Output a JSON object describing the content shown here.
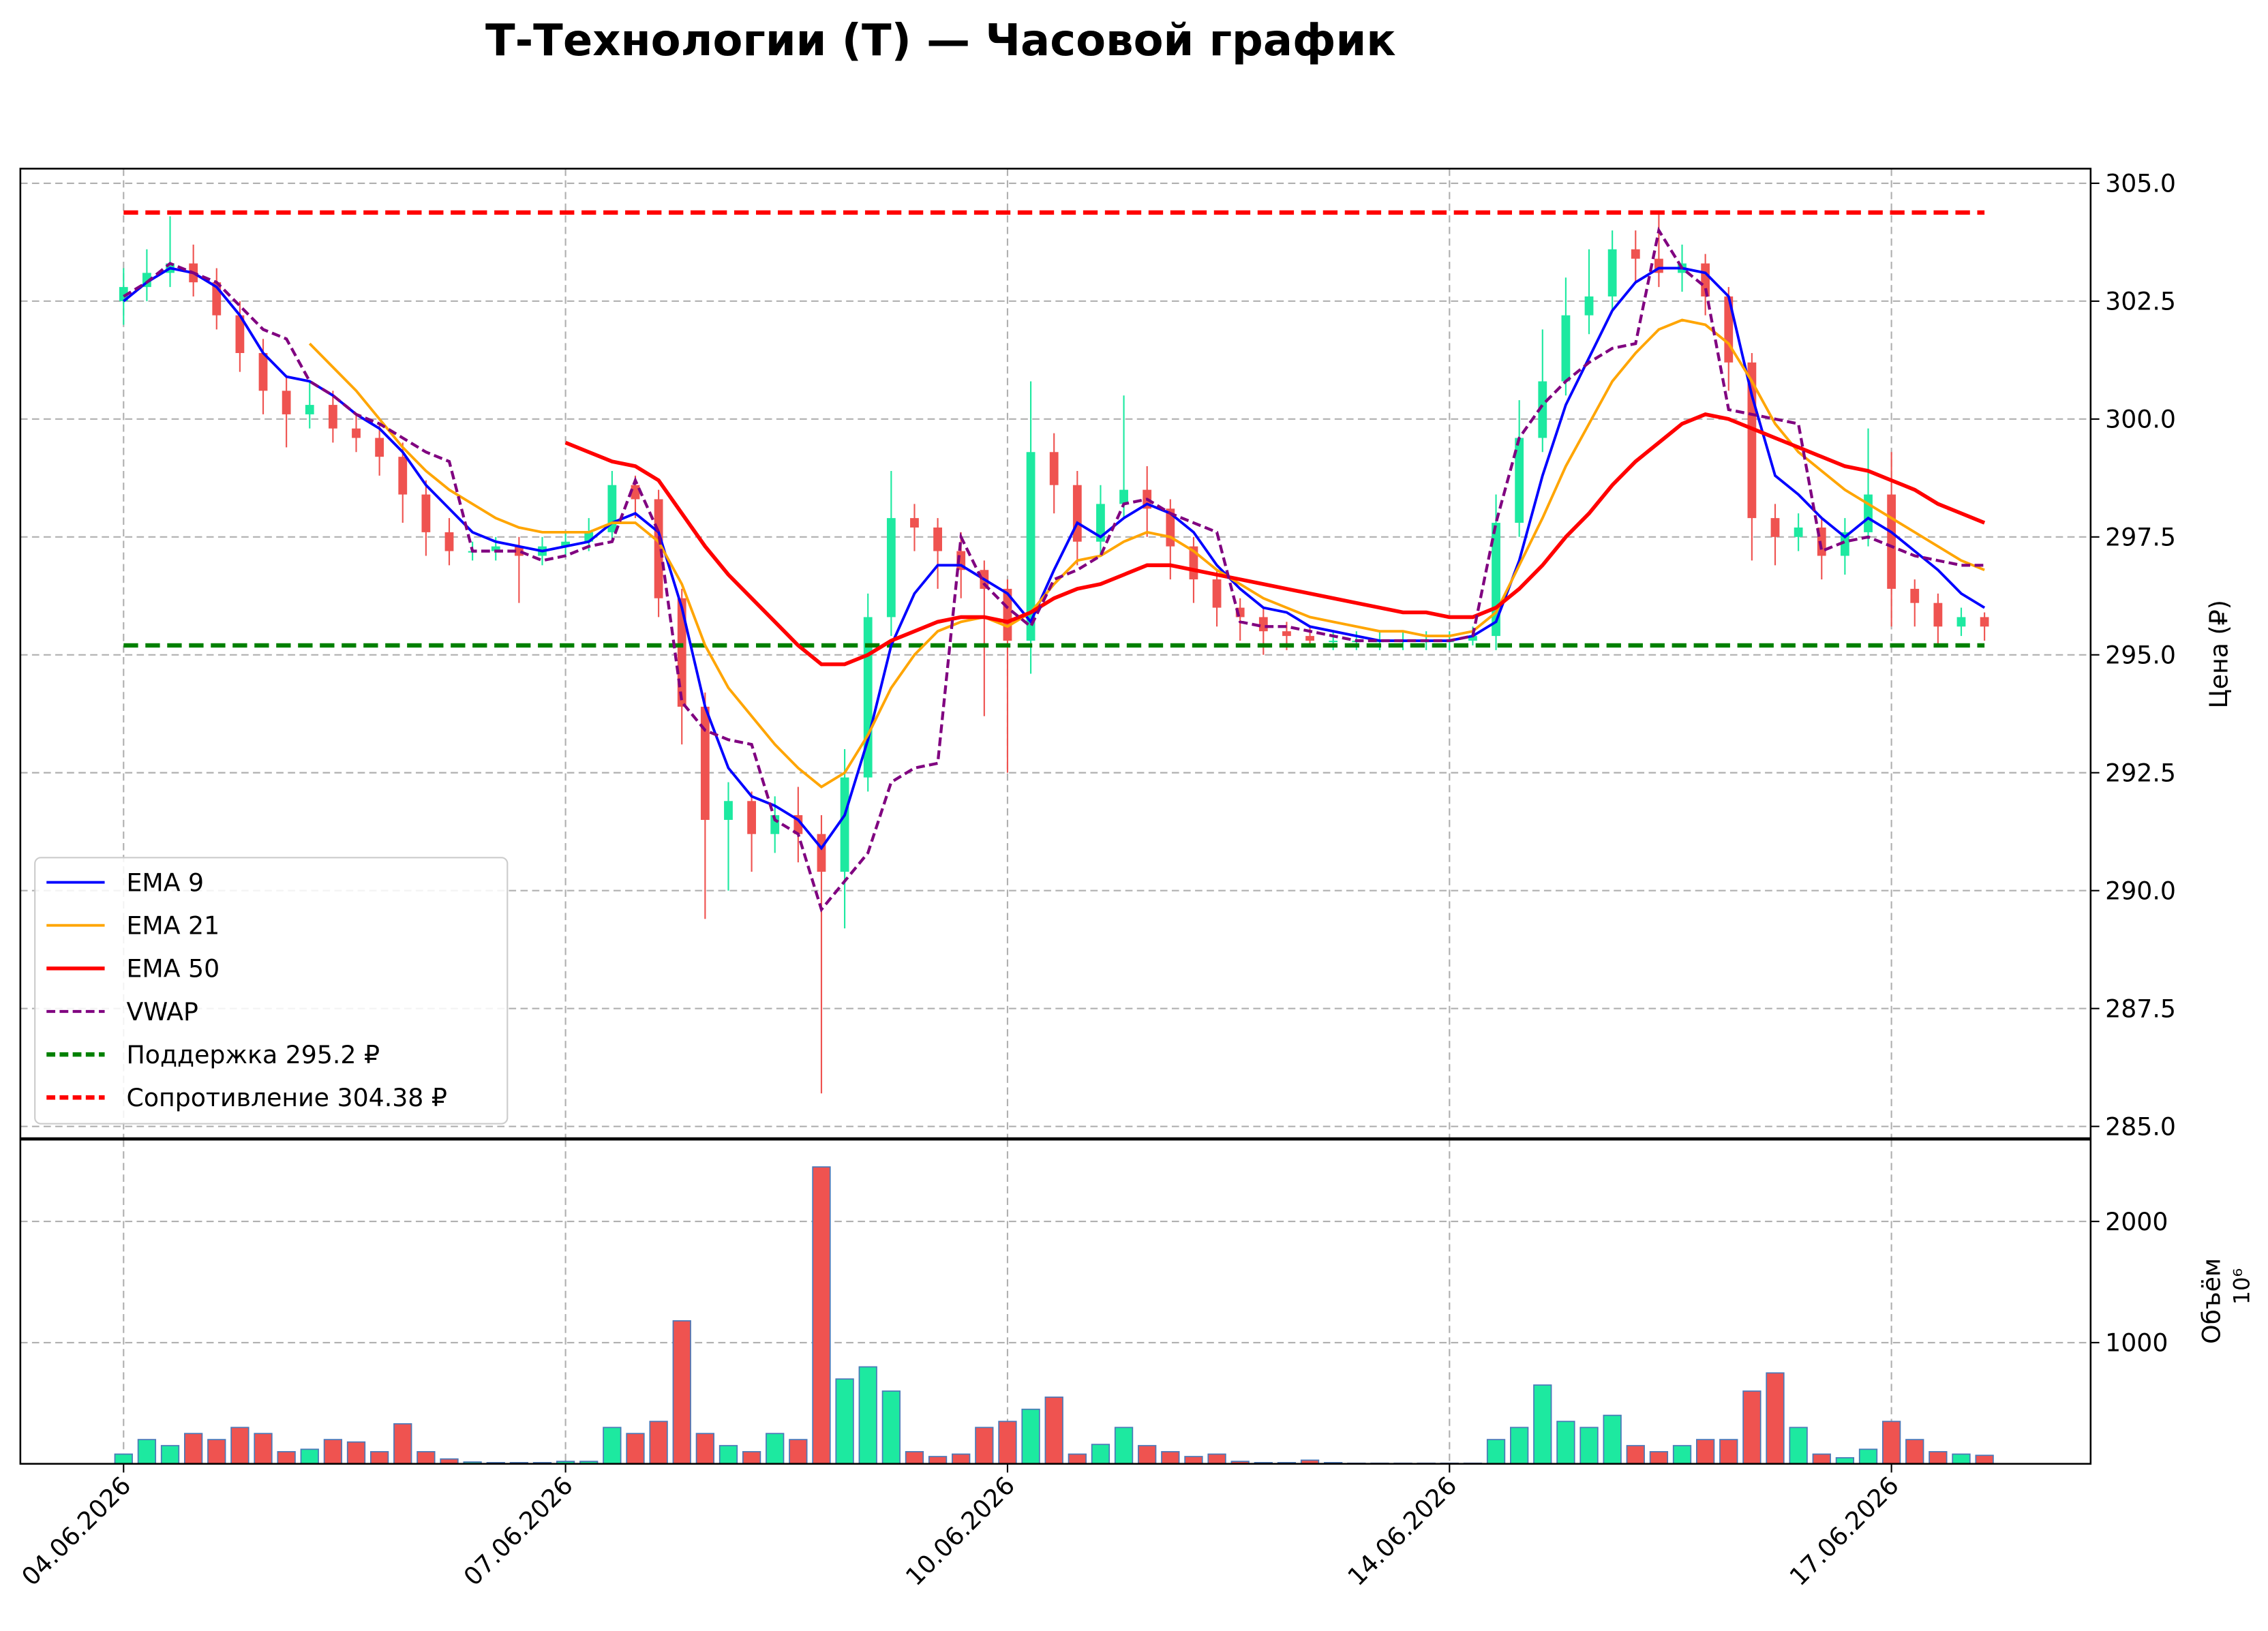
{
  "chart_data": {
    "type": "candlestick",
    "title": "Т-Технологии (T) — Часовой график",
    "y_label": "Цена (₽)",
    "volume_label": "Объём",
    "volume_multiplier": "10⁶",
    "categories": [
      "04.06.2026",
      null,
      null,
      null,
      null,
      null,
      null,
      null,
      null,
      null,
      null,
      null,
      null,
      null,
      null,
      null,
      null,
      null,
      null,
      "07.06.2026",
      null,
      null,
      null,
      null,
      null,
      null,
      null,
      null,
      null,
      null,
      null,
      null,
      null,
      null,
      null,
      null,
      null,
      null,
      "10.06.2026",
      null,
      null,
      null,
      null,
      null,
      null,
      null,
      null,
      null,
      null,
      null,
      null,
      null,
      null,
      null,
      null,
      null,
      null,
      "14.06.2026",
      null,
      null,
      null,
      null,
      null,
      null,
      null,
      null,
      null,
      null,
      null,
      null,
      null,
      null,
      null,
      null,
      null,
      null,
      "17.06.2026",
      null,
      null,
      null,
      null
    ],
    "open": [
      302.5,
      302.8,
      303.1,
      303.3,
      302.9,
      302.2,
      301.4,
      300.6,
      300.1,
      300.3,
      299.8,
      299.6,
      299.2,
      298.4,
      297.6,
      297.2,
      297.2,
      297.3,
      297.1,
      297.3,
      297.4,
      297.6,
      298.6,
      298.3,
      296.2,
      293.9,
      291.5,
      291.9,
      291.2,
      291.6,
      291.2,
      290.4,
      292.4,
      295.8,
      297.9,
      297.7,
      297.2,
      296.8,
      296.4,
      295.3,
      299.3,
      298.6,
      297.4,
      298.2,
      298.5,
      298.1,
      297.3,
      296.6,
      296.0,
      295.8,
      295.5,
      295.4,
      295.3,
      295.3,
      295.3,
      295.3,
      295.3,
      295.3,
      295.3,
      295.4,
      297.8,
      299.6,
      300.8,
      302.2,
      302.6,
      303.6,
      303.4,
      303.1,
      303.3,
      302.6,
      301.2,
      297.9,
      297.5,
      297.7,
      297.1,
      297.6,
      298.4,
      296.4,
      296.1,
      295.6,
      295.8
    ],
    "high": [
      303.2,
      303.6,
      304.3,
      303.7,
      303.2,
      302.5,
      301.7,
      300.9,
      300.8,
      300.6,
      300.1,
      299.9,
      299.5,
      298.7,
      297.9,
      297.4,
      297.5,
      297.5,
      297.5,
      297.6,
      297.9,
      298.9,
      298.8,
      298.5,
      296.4,
      294.2,
      292.3,
      292.1,
      292.0,
      292.2,
      291.6,
      293.0,
      296.3,
      298.9,
      298.2,
      297.9,
      297.6,
      297.0,
      296.6,
      300.8,
      299.7,
      298.9,
      298.6,
      300.5,
      299.0,
      298.3,
      297.5,
      296.8,
      296.2,
      296.0,
      295.7,
      295.6,
      295.5,
      295.5,
      295.5,
      295.5,
      295.5,
      295.5,
      295.6,
      298.4,
      300.4,
      301.9,
      303.0,
      303.6,
      304.0,
      304.0,
      304.4,
      303.7,
      303.5,
      302.8,
      301.4,
      298.2,
      298.0,
      297.9,
      297.9,
      299.8,
      299.3,
      296.6,
      296.3,
      296.0,
      295.9
    ],
    "low": [
      302.0,
      302.5,
      302.8,
      302.6,
      301.9,
      301.0,
      300.1,
      299.4,
      299.8,
      299.5,
      299.3,
      298.8,
      297.8,
      297.1,
      296.9,
      297.0,
      297.0,
      296.1,
      296.9,
      297.1,
      297.2,
      297.4,
      297.9,
      295.8,
      293.1,
      289.4,
      290.0,
      290.4,
      290.8,
      290.6,
      285.7,
      289.2,
      292.1,
      295.4,
      297.2,
      296.4,
      296.2,
      293.7,
      292.5,
      294.6,
      298.0,
      296.9,
      297.1,
      297.9,
      297.5,
      296.6,
      296.1,
      295.6,
      295.3,
      295.0,
      295.1,
      295.2,
      295.1,
      295.1,
      295.1,
      295.1,
      295.1,
      295.1,
      295.2,
      295.1,
      297.5,
      299.3,
      300.5,
      301.8,
      302.3,
      302.9,
      302.8,
      302.7,
      302.2,
      300.6,
      297.0,
      296.9,
      297.2,
      296.6,
      296.7,
      297.3,
      295.6,
      295.6,
      295.2,
      295.4,
      295.3
    ],
    "close": [
      302.8,
      303.1,
      303.3,
      302.9,
      302.2,
      301.4,
      300.6,
      300.1,
      300.3,
      299.8,
      299.6,
      299.2,
      298.4,
      297.6,
      297.2,
      297.2,
      297.3,
      297.1,
      297.3,
      297.4,
      297.6,
      298.6,
      298.3,
      296.2,
      293.9,
      291.5,
      291.9,
      291.2,
      291.6,
      291.2,
      290.4,
      292.4,
      295.8,
      297.9,
      297.7,
      297.2,
      296.8,
      296.4,
      295.3,
      299.3,
      298.6,
      297.4,
      298.2,
      298.5,
      298.1,
      297.3,
      296.6,
      296.0,
      295.8,
      295.5,
      295.4,
      295.3,
      295.3,
      295.3,
      295.3,
      295.3,
      295.3,
      295.3,
      295.4,
      297.8,
      299.6,
      300.8,
      302.2,
      302.6,
      303.6,
      303.4,
      303.1,
      303.3,
      302.6,
      301.2,
      297.9,
      297.5,
      297.7,
      297.1,
      297.6,
      298.4,
      296.4,
      296.1,
      295.6,
      295.8,
      295.6
    ],
    "volume": [
      80,
      200,
      150,
      250,
      200,
      300,
      250,
      100,
      120,
      200,
      180,
      100,
      330,
      100,
      40,
      15,
      10,
      10,
      10,
      20,
      20,
      300,
      250,
      350,
      1180,
      250,
      150,
      100,
      250,
      200,
      2450,
      700,
      800,
      600,
      100,
      60,
      80,
      300,
      350,
      450,
      550,
      80,
      160,
      300,
      150,
      100,
      60,
      80,
      20,
      10,
      10,
      30,
      10,
      5,
      5,
      5,
      5,
      5,
      5,
      200,
      300,
      650,
      350,
      300,
      400,
      150,
      100,
      150,
      200,
      200,
      600,
      750,
      300,
      80,
      50,
      120,
      350,
      200,
      100,
      80,
      70
    ],
    "up_color": "#1de9a0",
    "down_color": "#ef5350",
    "volume_edge_color": "#4a78b8",
    "series": [
      {
        "name": "EMA 9",
        "color": "#0000ff",
        "style": "solid",
        "width": 1.8,
        "values": [
          302.5,
          302.9,
          303.2,
          303.1,
          302.8,
          302.2,
          301.4,
          300.9,
          300.8,
          300.5,
          300.1,
          299.8,
          299.3,
          298.6,
          298.1,
          297.6,
          297.4,
          297.3,
          297.2,
          297.3,
          297.4,
          297.8,
          298.0,
          297.6,
          296.0,
          293.9,
          292.6,
          292.0,
          291.8,
          291.5,
          290.9,
          291.6,
          293.2,
          295.2,
          296.3,
          296.9,
          296.9,
          296.6,
          296.3,
          295.7,
          296.8,
          297.8,
          297.5,
          297.9,
          298.2,
          298.0,
          297.6,
          296.9,
          296.4,
          296.0,
          295.9,
          295.6,
          295.5,
          295.4,
          295.3,
          295.3,
          295.3,
          295.3,
          295.4,
          295.7,
          297.0,
          298.8,
          300.3,
          301.3,
          302.3,
          302.9,
          303.2,
          303.2,
          303.1,
          302.6,
          300.5,
          298.8,
          298.4,
          297.9,
          297.5,
          297.9,
          297.6,
          297.2,
          296.8,
          296.3,
          296.0
        ]
      },
      {
        "name": "EMA 21",
        "color": "#ffa500",
        "style": "solid",
        "width": 1.8,
        "values": [
          null,
          null,
          null,
          null,
          null,
          null,
          null,
          null,
          301.6,
          301.1,
          300.6,
          300.0,
          299.4,
          298.9,
          298.5,
          298.2,
          297.9,
          297.7,
          297.6,
          297.6,
          297.6,
          297.8,
          297.8,
          297.4,
          296.5,
          295.2,
          294.3,
          293.7,
          293.1,
          292.6,
          292.2,
          292.5,
          293.3,
          294.3,
          295.0,
          295.5,
          295.7,
          295.8,
          295.6,
          295.9,
          296.5,
          297.0,
          297.1,
          297.4,
          297.6,
          297.5,
          297.2,
          296.8,
          296.5,
          296.2,
          296.0,
          295.8,
          295.7,
          295.6,
          295.5,
          295.5,
          295.4,
          295.4,
          295.5,
          295.9,
          296.9,
          297.9,
          299.0,
          299.9,
          300.8,
          301.4,
          301.9,
          302.1,
          302.0,
          301.6,
          300.8,
          299.9,
          299.3,
          298.9,
          298.5,
          298.2,
          297.9,
          297.6,
          297.3,
          297.0,
          296.8
        ]
      },
      {
        "name": "EMA 50",
        "color": "#ff0000",
        "style": "solid",
        "width": 2.6,
        "values": [
          null,
          null,
          null,
          null,
          null,
          null,
          null,
          null,
          null,
          null,
          null,
          null,
          null,
          null,
          null,
          null,
          null,
          null,
          null,
          299.5,
          299.3,
          299.1,
          299.0,
          298.7,
          298.0,
          297.3,
          296.7,
          296.2,
          295.7,
          295.2,
          294.8,
          294.8,
          295.0,
          295.3,
          295.5,
          295.7,
          295.8,
          295.8,
          295.7,
          295.9,
          296.2,
          296.4,
          296.5,
          296.7,
          296.9,
          296.9,
          296.8,
          296.7,
          296.6,
          296.5,
          296.4,
          296.3,
          296.2,
          296.1,
          296.0,
          295.9,
          295.9,
          295.8,
          295.8,
          296.0,
          296.4,
          296.9,
          297.5,
          298.0,
          298.6,
          299.1,
          299.5,
          299.9,
          300.1,
          300.0,
          299.8,
          299.6,
          299.4,
          299.2,
          299.0,
          298.9,
          298.7,
          298.5,
          298.2,
          298.0,
          297.8
        ]
      },
      {
        "name": "VWAP",
        "color": "#800080",
        "style": "dashed",
        "width": 2,
        "values": [
          302.6,
          302.9,
          303.3,
          303.1,
          302.9,
          302.4,
          301.9,
          301.7,
          300.8,
          300.5,
          300.1,
          299.9,
          299.6,
          299.3,
          299.1,
          297.2,
          297.2,
          297.2,
          297.0,
          297.1,
          297.3,
          297.4,
          298.7,
          297.6,
          294.0,
          293.4,
          293.2,
          293.1,
          291.5,
          291.2,
          289.6,
          290.2,
          290.8,
          292.3,
          292.6,
          292.7,
          297.5,
          296.5,
          296.0,
          295.6,
          296.6,
          296.8,
          297.1,
          298.2,
          298.3,
          298.0,
          297.8,
          297.6,
          295.7,
          295.6,
          295.6,
          295.5,
          295.4,
          295.3,
          295.3,
          295.3,
          295.3,
          295.3,
          295.4,
          297.8,
          299.6,
          300.3,
          300.8,
          301.2,
          301.5,
          301.6,
          304.0,
          303.2,
          302.8,
          300.2,
          300.1,
          300.0,
          299.9,
          297.2,
          297.4,
          297.5,
          297.3,
          297.1,
          297.0,
          296.9,
          296.9
        ]
      }
    ],
    "levels": [
      {
        "name": "Поддержка 295.2 ₽",
        "value": 295.2,
        "color": "#008000"
      },
      {
        "name": "Сопротивление 304.38 ₽",
        "value": 304.38,
        "color": "#ff0000"
      }
    ],
    "ylim": [
      284.75,
      305.31
    ],
    "yticks": [
      {
        "value": 285,
        "label": "285.0"
      },
      {
        "value": 287.5,
        "label": "287.5"
      },
      {
        "value": 290,
        "label": "290.0"
      },
      {
        "value": 292.5,
        "label": "292.5"
      },
      {
        "value": 295,
        "label": "295.0"
      },
      {
        "value": 297.5,
        "label": "297.5"
      },
      {
        "value": 300,
        "label": "300.0"
      },
      {
        "value": 302.5,
        "label": "302.5"
      },
      {
        "value": 305,
        "label": "305.0"
      }
    ],
    "volume_ylim": [
      0,
      2675
    ],
    "volume_yticks": [
      1000,
      2000
    ],
    "grid": true,
    "legend": "lower left"
  }
}
